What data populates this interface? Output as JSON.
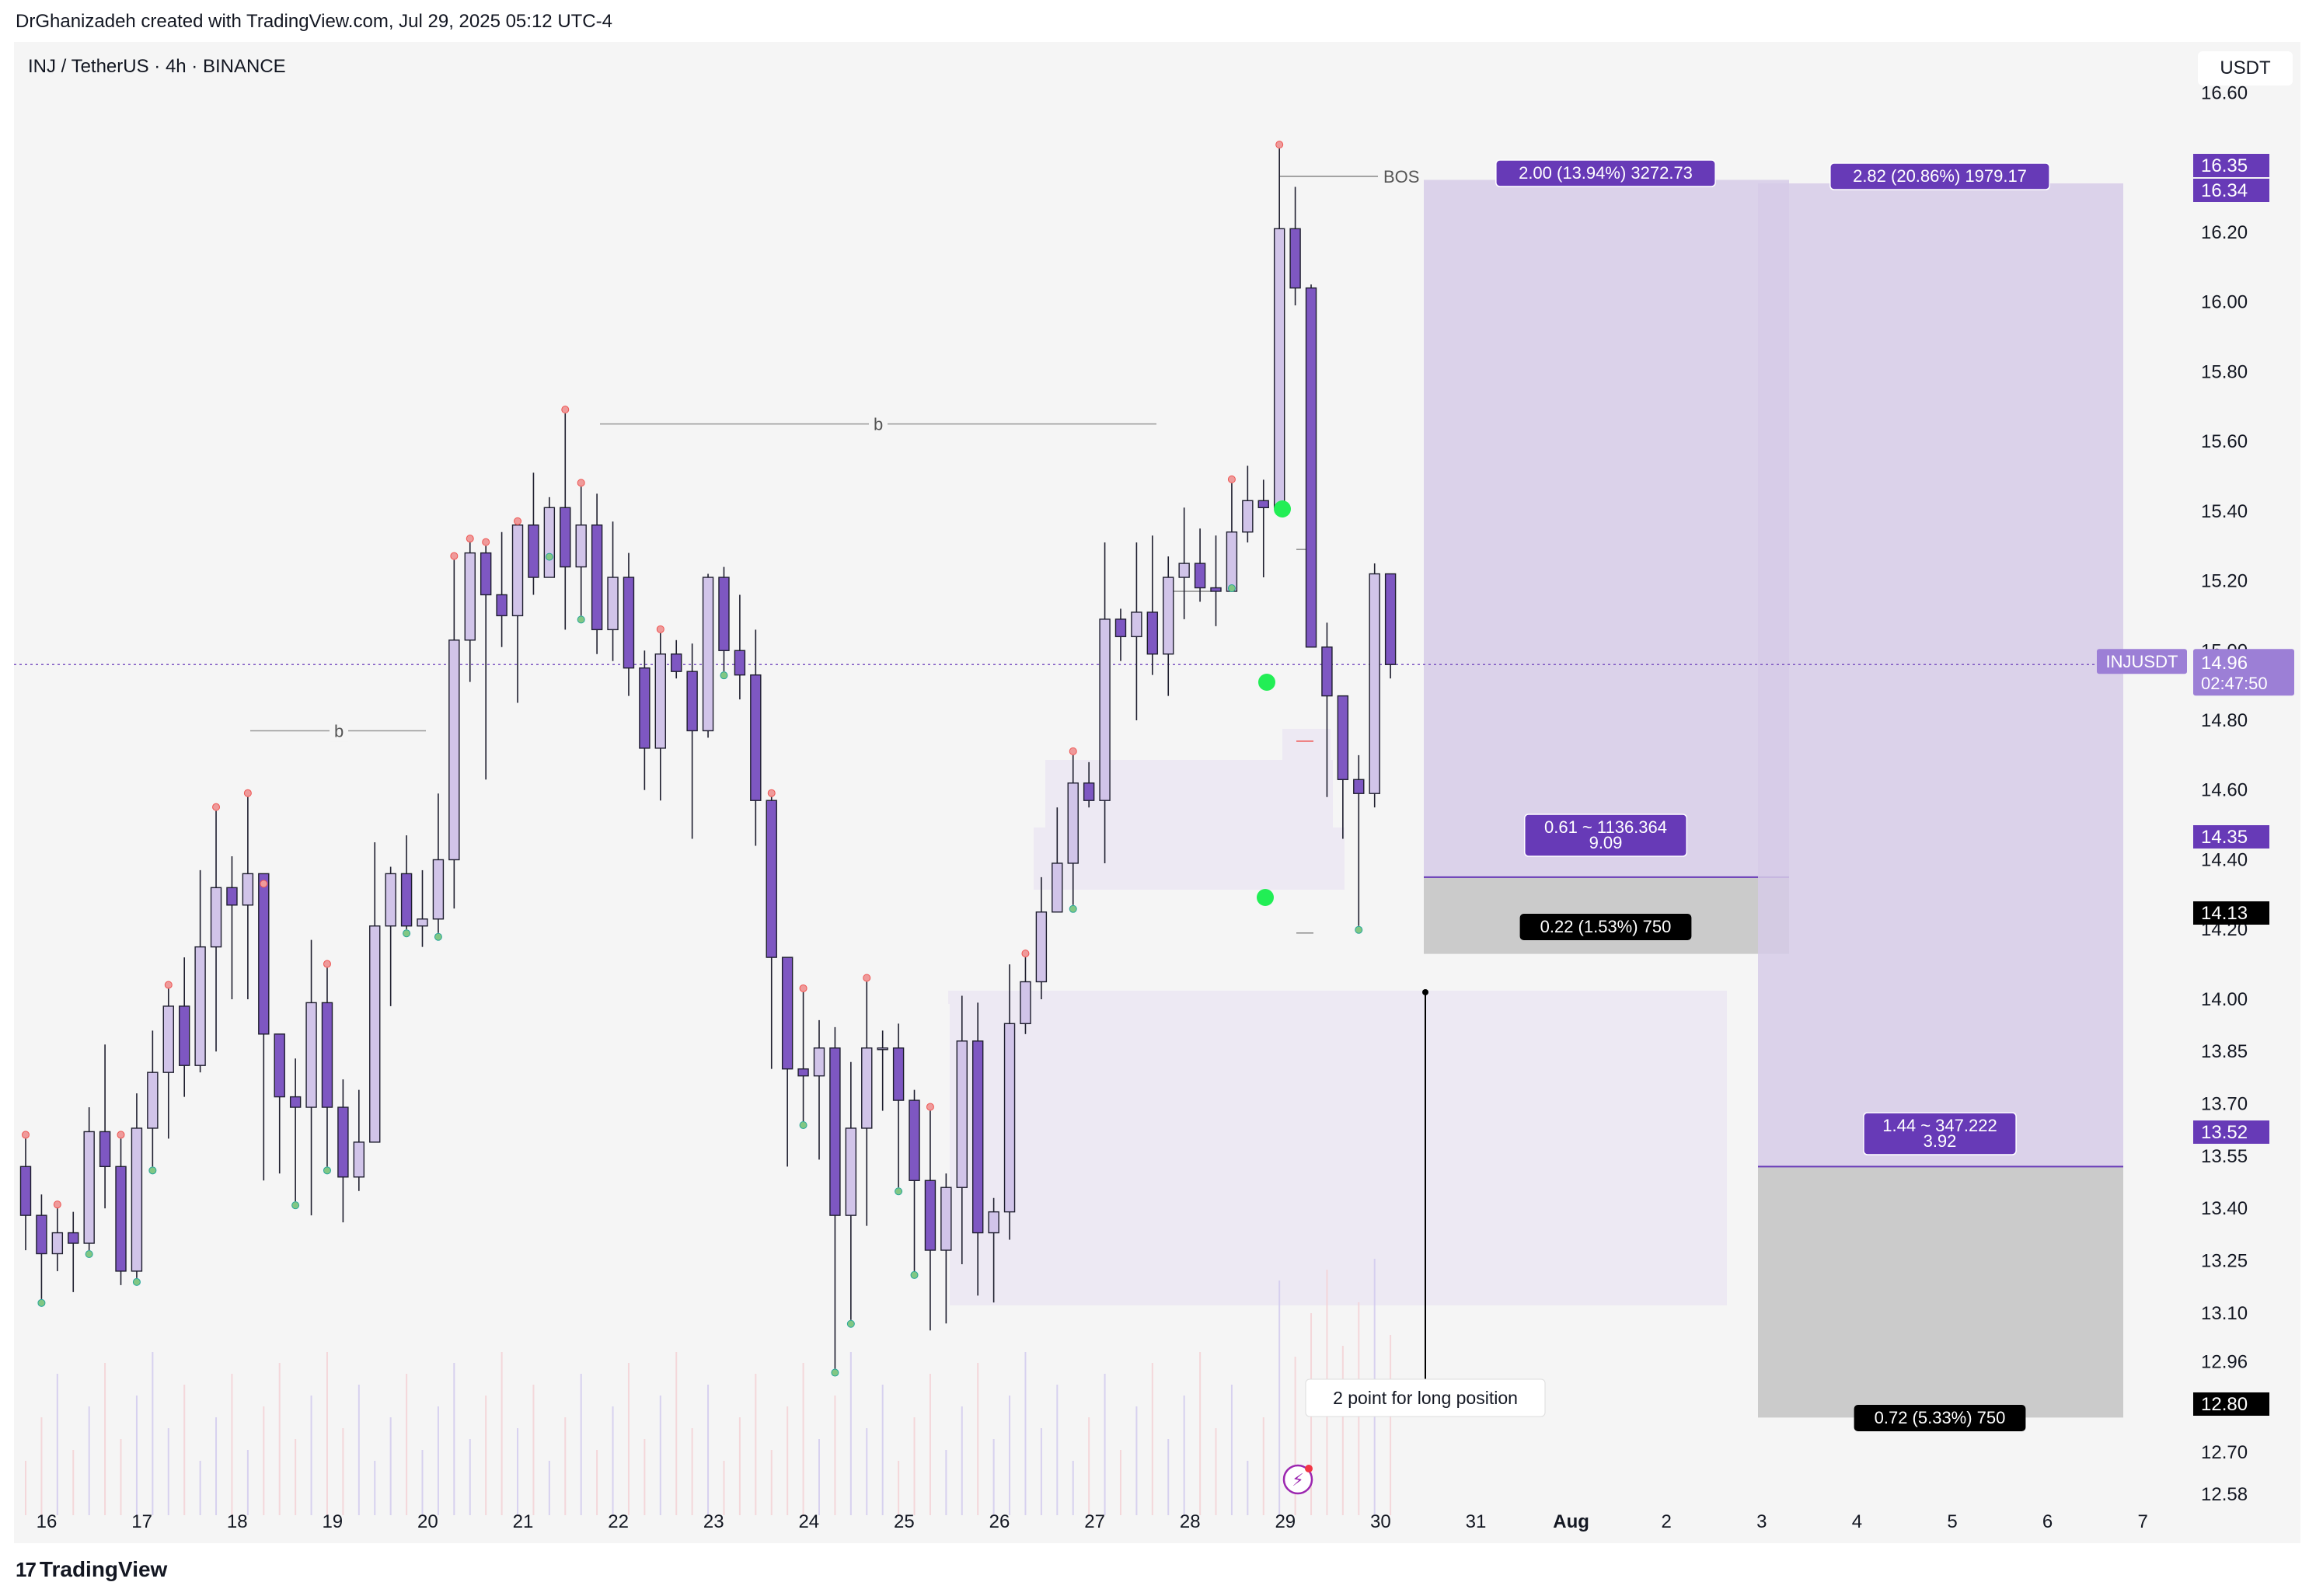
{
  "header": {
    "attribution": "DrGhanizadeh created with TradingView.com, Jul 29, 2025 05:12 UTC-4",
    "symbol": "INJ / TetherUS · 4h · BINANCE",
    "currency": "USDT",
    "brand": "TradingView"
  },
  "colors": {
    "bull_body": "#d1c4e9",
    "bear_body": "#7e57c2",
    "candle_border": "#1e1e2e",
    "profit_zone": "#d6cbe8",
    "stop_zone": "#c6c6c6",
    "label_purple": "#673ab7",
    "label_black": "#000000",
    "demand_zone": "#ede9f3",
    "pivot_high": "#ef5350",
    "pivot_low": "#26a69a",
    "signal_green": "#22ee55"
  },
  "chart_data": {
    "type": "candlestick",
    "timeframe": "4h",
    "x_tick_labels": [
      "16",
      "17",
      "18",
      "19",
      "20",
      "21",
      "22",
      "23",
      "24",
      "25",
      "26",
      "27",
      "28",
      "29",
      "30",
      "31",
      "Aug",
      "2",
      "3",
      "4",
      "5",
      "6",
      "7"
    ],
    "y_tick_labels": [
      "16.60",
      "16.20",
      "16.00",
      "15.80",
      "15.60",
      "15.40",
      "15.20",
      "15.00",
      "14.80",
      "14.60",
      "14.40",
      "14.20",
      "14.00",
      "13.85",
      "13.70",
      "13.55",
      "13.40",
      "13.25",
      "13.10",
      "12.96",
      "12.70",
      "12.58"
    ],
    "ylim": [
      12.52,
      16.71
    ],
    "candles": [
      [
        13.52,
        13.38,
        13.6,
        13.28
      ],
      [
        13.38,
        13.27,
        13.44,
        13.14
      ],
      [
        13.27,
        13.33,
        13.4,
        13.22
      ],
      [
        13.33,
        13.3,
        13.39,
        13.16
      ],
      [
        13.3,
        13.62,
        13.69,
        13.28
      ],
      [
        13.62,
        13.52,
        13.87,
        13.4
      ],
      [
        13.52,
        13.22,
        13.6,
        13.18
      ],
      [
        13.22,
        13.63,
        13.73,
        13.2
      ],
      [
        13.63,
        13.79,
        13.91,
        13.52
      ],
      [
        13.79,
        13.98,
        14.03,
        13.6
      ],
      [
        13.98,
        13.81,
        14.12,
        13.72
      ],
      [
        13.81,
        14.15,
        14.37,
        13.79
      ],
      [
        14.15,
        14.32,
        14.54,
        13.85
      ],
      [
        14.32,
        14.27,
        14.41,
        14.0
      ],
      [
        14.27,
        14.36,
        14.58,
        14.0
      ],
      [
        14.36,
        13.9,
        14.32,
        13.48
      ],
      [
        13.9,
        13.72,
        13.9,
        13.5
      ],
      [
        13.72,
        13.69,
        13.83,
        13.42
      ],
      [
        13.69,
        13.99,
        14.17,
        13.38
      ],
      [
        13.99,
        13.69,
        14.09,
        13.52
      ],
      [
        13.69,
        13.49,
        13.77,
        13.36
      ],
      [
        13.49,
        13.59,
        13.74,
        13.45
      ],
      [
        13.59,
        14.21,
        14.45,
        13.59
      ],
      [
        14.21,
        14.36,
        14.38,
        13.98
      ],
      [
        14.36,
        14.21,
        14.47,
        14.2
      ],
      [
        14.21,
        14.23,
        14.37,
        14.15
      ],
      [
        14.23,
        14.4,
        14.59,
        14.19
      ],
      [
        14.4,
        15.03,
        15.26,
        14.26
      ],
      [
        15.03,
        15.28,
        15.31,
        14.91
      ],
      [
        15.28,
        15.16,
        15.3,
        14.63
      ],
      [
        15.16,
        15.1,
        15.34,
        15.01
      ],
      [
        15.1,
        15.36,
        15.36,
        14.85
      ],
      [
        15.36,
        15.21,
        15.51,
        15.16
      ],
      [
        15.21,
        15.41,
        15.44,
        15.28
      ],
      [
        15.41,
        15.24,
        15.68,
        15.06
      ],
      [
        15.24,
        15.36,
        15.47,
        15.1
      ],
      [
        15.36,
        15.06,
        15.45,
        14.99
      ],
      [
        15.06,
        15.21,
        15.37,
        14.97
      ],
      [
        15.21,
        14.95,
        15.28,
        14.87
      ],
      [
        14.95,
        14.72,
        15.0,
        14.6
      ],
      [
        14.72,
        14.99,
        15.05,
        14.57
      ],
      [
        14.99,
        14.94,
        15.03,
        14.92
      ],
      [
        14.94,
        14.77,
        15.02,
        14.46
      ],
      [
        14.77,
        15.21,
        15.22,
        14.75
      ],
      [
        15.21,
        15.0,
        15.24,
        14.94
      ],
      [
        15.0,
        14.93,
        15.16,
        14.86
      ],
      [
        14.93,
        14.57,
        15.06,
        14.44
      ],
      [
        14.57,
        14.12,
        14.58,
        13.8
      ],
      [
        14.12,
        13.8,
        14.12,
        13.52
      ],
      [
        13.8,
        13.78,
        14.02,
        13.65
      ],
      [
        13.78,
        13.86,
        13.94,
        13.54
      ],
      [
        13.86,
        13.38,
        13.92,
        12.94
      ],
      [
        13.38,
        13.63,
        13.82,
        13.08
      ],
      [
        13.63,
        13.86,
        14.05,
        13.35
      ],
      [
        13.86,
        13.86,
        13.91,
        13.68
      ],
      [
        13.86,
        13.71,
        13.93,
        13.46
      ],
      [
        13.71,
        13.48,
        13.74,
        13.22
      ],
      [
        13.48,
        13.28,
        13.68,
        13.05
      ],
      [
        13.28,
        13.46,
        13.5,
        13.07
      ],
      [
        13.46,
        13.88,
        14.01,
        13.24
      ],
      [
        13.88,
        13.33,
        13.99,
        13.15
      ],
      [
        13.33,
        13.39,
        13.43,
        13.13
      ],
      [
        13.39,
        13.93,
        14.1,
        13.31
      ],
      [
        13.93,
        14.05,
        14.12,
        13.9
      ],
      [
        14.05,
        14.25,
        14.35,
        14.0
      ],
      [
        14.25,
        14.39,
        14.55,
        14.25
      ],
      [
        14.39,
        14.62,
        14.7,
        14.27
      ],
      [
        14.62,
        14.57,
        14.68,
        14.55
      ],
      [
        14.57,
        15.09,
        15.31,
        14.39
      ],
      [
        15.09,
        15.04,
        15.12,
        14.97
      ],
      [
        15.04,
        15.11,
        15.31,
        14.8
      ],
      [
        15.11,
        14.99,
        15.33,
        14.93
      ],
      [
        14.99,
        15.21,
        15.27,
        14.87
      ],
      [
        15.21,
        15.25,
        15.41,
        15.09
      ],
      [
        15.25,
        15.18,
        15.35,
        15.14
      ],
      [
        15.18,
        15.17,
        15.33,
        15.07
      ],
      [
        15.17,
        15.34,
        15.48,
        15.19
      ],
      [
        15.34,
        15.43,
        15.53,
        15.31
      ],
      [
        15.43,
        15.41,
        15.49,
        15.21
      ],
      [
        15.41,
        16.21,
        16.44,
        15.45
      ],
      [
        16.21,
        16.04,
        16.33,
        15.99
      ],
      [
        16.04,
        15.01,
        16.05,
        15.05
      ],
      [
        15.01,
        14.87,
        15.08,
        14.58
      ],
      [
        14.87,
        14.63,
        14.77,
        14.46
      ],
      [
        14.63,
        14.59,
        14.7,
        14.21
      ],
      [
        14.59,
        15.22,
        15.25,
        14.55
      ],
      [
        15.22,
        14.96,
        15.21,
        14.92
      ]
    ],
    "trade_setups": [
      {
        "entry": 14.35,
        "target": 16.35,
        "stop": 14.13,
        "target_label": "2.00 (13.94%) 3272.73",
        "entry_label_1": "0.61 ~ 1136.364",
        "entry_label_2": "9.09",
        "stop_label": "0.22 (1.53%) 750"
      },
      {
        "entry": 13.52,
        "target": 16.34,
        "stop": 12.8,
        "target_label": "2.82 (20.86%) 1979.17",
        "entry_label_1": "1.44 ~ 347.222",
        "entry_label_2": "3.92",
        "stop_label": "0.72 (5.33%) 750"
      }
    ],
    "price_tags": [
      {
        "value": 16.35,
        "text": "16.35",
        "style": "purple"
      },
      {
        "value": 16.34,
        "text": "16.34",
        "style": "purple"
      },
      {
        "value": 14.35,
        "text": "14.35",
        "style": "purple"
      },
      {
        "value": 14.13,
        "text": "14.13",
        "style": "black"
      },
      {
        "value": 13.52,
        "text": "13.52",
        "style": "purple"
      },
      {
        "value": 12.8,
        "text": "12.80",
        "style": "black"
      }
    ],
    "last_price": {
      "symbol": "INJUSDT",
      "value": "14.96",
      "countdown": "02:47:50"
    },
    "annotations": {
      "bos": "BOS",
      "break_1": "b",
      "break_2": "b",
      "note": "2 point for long position"
    }
  }
}
